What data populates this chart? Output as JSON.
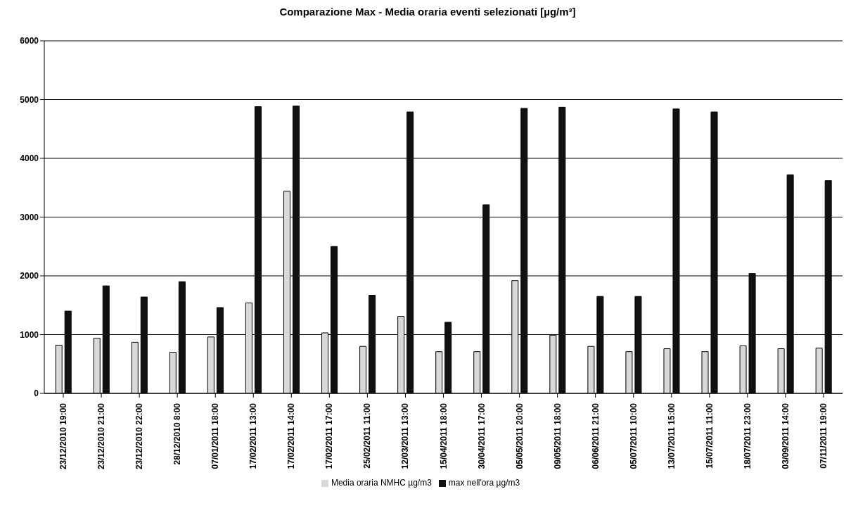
{
  "chart_data": {
    "type": "bar",
    "title": "Comparazione Max - Media oraria eventi selezionati [µg/m³]",
    "categories": [
      "23/12/2010 19:00",
      "23/12/2010 21:00",
      "23/12/2010 22:00",
      "28/12/2010 8:00",
      "07/01/2011 18:00",
      "17/02/2011 13:00",
      "17/02/2011 14:00",
      "17/02/2011 17:00",
      "25/02/2011 11:00",
      "12/03/2011 13:00",
      "15/04/2011 18:00",
      "30/04/2011 17:00",
      "05/05/2011 20:00",
      "09/05/2011 18:00",
      "06/06/2011 21:00",
      "05/07/2011 10:00",
      "13/07/2011 15:00",
      "15/07/2011 11:00",
      "18/07/2011 23:00",
      "03/09/2011 14:00",
      "07/11/2011 19:00"
    ],
    "series": [
      {
        "name": "Media oraria NMHC µg/m3",
        "color": "#d9d9d9",
        "values": [
          820,
          940,
          870,
          700,
          960,
          1540,
          3440,
          1030,
          800,
          1310,
          710,
          710,
          1920,
          990,
          800,
          710,
          760,
          710,
          810,
          760,
          770
        ]
      },
      {
        "name": "max nell'ora µg/m3",
        "color": "#111111",
        "values": [
          1400,
          1830,
          1640,
          1900,
          1460,
          4880,
          4890,
          2500,
          1670,
          4790,
          1210,
          3210,
          4850,
          4870,
          1650,
          1650,
          4840,
          4790,
          2040,
          3720,
          3620
        ]
      }
    ],
    "ylim": [
      0,
      6000
    ],
    "yticks": [
      0,
      1000,
      2000,
      3000,
      4000,
      5000,
      6000
    ],
    "grid": "y",
    "legend": "bottom"
  }
}
